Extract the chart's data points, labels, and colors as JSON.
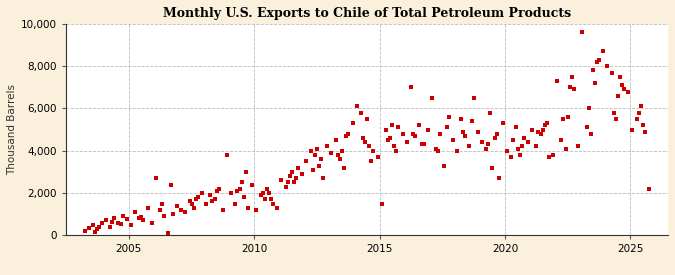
{
  "title": "Monthly U.S. Exports to Chile of Total Petroleum Products",
  "ylabel": "Thousand Barrels",
  "figure_bg_color": "#FAF0DC",
  "plot_bg_color": "#FFFFFF",
  "marker_color": "#CC0000",
  "xlim": [
    2002.5,
    2026.5
  ],
  "ylim": [
    0,
    10000
  ],
  "yticks": [
    0,
    2000,
    4000,
    6000,
    8000,
    10000
  ],
  "xticks": [
    2005,
    2010,
    2015,
    2020,
    2025
  ],
  "scatter_data": [
    [
      2003.25,
      200
    ],
    [
      2003.42,
      350
    ],
    [
      2003.58,
      500
    ],
    [
      2003.75,
      300
    ],
    [
      2003.92,
      600
    ],
    [
      2004.08,
      700
    ],
    [
      2004.25,
      400
    ],
    [
      2004.42,
      800
    ],
    [
      2004.58,
      600
    ],
    [
      2004.75,
      900
    ],
    [
      2004.92,
      750
    ],
    [
      2005.08,
      500
    ],
    [
      2005.25,
      1100
    ],
    [
      2005.42,
      800
    ],
    [
      2005.58,
      700
    ],
    [
      2005.75,
      1300
    ],
    [
      2005.92,
      600
    ],
    [
      2006.08,
      2700
    ],
    [
      2006.25,
      1200
    ],
    [
      2006.42,
      900
    ],
    [
      2006.58,
      100
    ],
    [
      2006.75,
      1000
    ],
    [
      2006.92,
      1400
    ],
    [
      2007.08,
      1200
    ],
    [
      2007.25,
      1100
    ],
    [
      2007.42,
      1600
    ],
    [
      2007.58,
      1300
    ],
    [
      2007.75,
      1800
    ],
    [
      2007.92,
      2000
    ],
    [
      2008.08,
      1500
    ],
    [
      2008.25,
      1900
    ],
    [
      2008.42,
      1700
    ],
    [
      2008.58,
      2200
    ],
    [
      2008.75,
      1200
    ],
    [
      2008.92,
      3800
    ],
    [
      2009.08,
      2000
    ],
    [
      2009.25,
      1500
    ],
    [
      2009.42,
      2200
    ],
    [
      2009.58,
      1800
    ],
    [
      2009.75,
      1300
    ],
    [
      2009.92,
      2400
    ],
    [
      2010.08,
      1200
    ],
    [
      2010.25,
      1900
    ],
    [
      2010.42,
      1700
    ],
    [
      2010.58,
      2000
    ],
    [
      2010.75,
      1500
    ],
    [
      2010.92,
      1300
    ],
    [
      2011.08,
      2600
    ],
    [
      2011.25,
      2300
    ],
    [
      2011.42,
      2800
    ],
    [
      2011.58,
      2500
    ],
    [
      2011.75,
      3200
    ],
    [
      2011.92,
      2900
    ],
    [
      2012.08,
      3500
    ],
    [
      2012.25,
      4000
    ],
    [
      2012.42,
      3800
    ],
    [
      2012.58,
      3300
    ],
    [
      2012.75,
      2700
    ],
    [
      2012.92,
      4200
    ],
    [
      2013.08,
      3900
    ],
    [
      2013.25,
      4500
    ],
    [
      2013.42,
      3600
    ],
    [
      2013.58,
      3200
    ],
    [
      2013.75,
      4800
    ],
    [
      2013.92,
      5300
    ],
    [
      2014.08,
      6100
    ],
    [
      2014.25,
      5800
    ],
    [
      2014.42,
      4400
    ],
    [
      2014.58,
      4200
    ],
    [
      2014.75,
      4000
    ],
    [
      2014.92,
      3700
    ],
    [
      2015.08,
      1500
    ],
    [
      2015.25,
      5000
    ],
    [
      2015.42,
      4600
    ],
    [
      2015.58,
      4200
    ],
    [
      2015.75,
      5100
    ],
    [
      2015.92,
      4800
    ],
    [
      2016.08,
      4400
    ],
    [
      2016.25,
      7000
    ],
    [
      2016.42,
      4700
    ],
    [
      2016.58,
      5200
    ],
    [
      2016.75,
      4300
    ],
    [
      2016.92,
      5000
    ],
    [
      2017.08,
      6500
    ],
    [
      2017.25,
      4100
    ],
    [
      2017.42,
      4800
    ],
    [
      2017.58,
      3300
    ],
    [
      2017.75,
      5600
    ],
    [
      2017.92,
      4500
    ],
    [
      2018.08,
      4000
    ],
    [
      2018.25,
      5500
    ],
    [
      2018.42,
      4700
    ],
    [
      2018.58,
      4200
    ],
    [
      2018.75,
      6500
    ],
    [
      2018.92,
      4900
    ],
    [
      2019.08,
      4400
    ],
    [
      2019.25,
      4100
    ],
    [
      2019.42,
      5800
    ],
    [
      2019.58,
      4600
    ],
    [
      2019.75,
      2700
    ],
    [
      2019.92,
      5300
    ],
    [
      2020.08,
      4000
    ],
    [
      2020.25,
      3700
    ],
    [
      2020.42,
      5100
    ],
    [
      2020.58,
      3800
    ],
    [
      2020.75,
      4600
    ],
    [
      2020.92,
      4400
    ],
    [
      2021.08,
      5000
    ],
    [
      2021.25,
      4200
    ],
    [
      2021.42,
      4800
    ],
    [
      2021.58,
      5200
    ],
    [
      2021.75,
      3700
    ],
    [
      2021.92,
      3800
    ],
    [
      2022.08,
      7300
    ],
    [
      2022.25,
      4500
    ],
    [
      2022.42,
      4100
    ],
    [
      2022.58,
      7000
    ],
    [
      2022.75,
      6900
    ],
    [
      2022.92,
      4200
    ],
    [
      2023.08,
      9600
    ],
    [
      2023.25,
      5100
    ],
    [
      2023.42,
      4800
    ],
    [
      2023.58,
      7200
    ],
    [
      2023.75,
      8300
    ],
    [
      2023.92,
      8700
    ],
    [
      2024.08,
      8000
    ],
    [
      2024.25,
      7700
    ],
    [
      2024.42,
      5500
    ],
    [
      2024.58,
      7500
    ],
    [
      2024.75,
      6900
    ],
    [
      2024.92,
      6800
    ],
    [
      2025.08,
      5000
    ],
    [
      2025.25,
      5500
    ],
    [
      2025.42,
      6100
    ],
    [
      2025.58,
      4900
    ],
    [
      2003.67,
      150
    ],
    [
      2004.33,
      650
    ],
    [
      2005.5,
      850
    ],
    [
      2006.33,
      1500
    ],
    [
      2007.67,
      1700
    ],
    [
      2008.5,
      2100
    ],
    [
      2009.33,
      2100
    ],
    [
      2010.33,
      2000
    ],
    [
      2011.33,
      2500
    ],
    [
      2012.33,
      3100
    ],
    [
      2013.33,
      3800
    ],
    [
      2014.33,
      4600
    ],
    [
      2015.33,
      4500
    ],
    [
      2016.33,
      4800
    ],
    [
      2017.33,
      4000
    ],
    [
      2018.33,
      4900
    ],
    [
      2019.33,
      4300
    ],
    [
      2020.33,
      4500
    ],
    [
      2021.33,
      4900
    ],
    [
      2022.33,
      5500
    ],
    [
      2023.33,
      6000
    ],
    [
      2024.33,
      5800
    ],
    [
      2025.33,
      5800
    ],
    [
      2025.5,
      5200
    ],
    [
      2016.67,
      4300
    ],
    [
      2017.67,
      5100
    ],
    [
      2018.67,
      5400
    ],
    [
      2019.67,
      4800
    ],
    [
      2020.67,
      4200
    ],
    [
      2021.67,
      5300
    ],
    [
      2022.67,
      7500
    ],
    [
      2023.67,
      8200
    ],
    [
      2024.67,
      7100
    ],
    [
      2003.83,
      400
    ],
    [
      2004.67,
      550
    ],
    [
      2006.67,
      2400
    ],
    [
      2009.67,
      3000
    ],
    [
      2010.67,
      1700
    ],
    [
      2011.67,
      2700
    ],
    [
      2012.67,
      3600
    ],
    [
      2013.67,
      4700
    ],
    [
      2014.67,
      3500
    ],
    [
      2015.67,
      4000
    ],
    [
      2019.5,
      3200
    ],
    [
      2020.5,
      4100
    ],
    [
      2021.5,
      5000
    ],
    [
      2022.5,
      5600
    ],
    [
      2023.5,
      7800
    ],
    [
      2024.5,
      6600
    ],
    [
      2007.5,
      1500
    ],
    [
      2008.33,
      1600
    ],
    [
      2009.5,
      2500
    ],
    [
      2010.5,
      2200
    ],
    [
      2011.5,
      3000
    ],
    [
      2012.5,
      4100
    ],
    [
      2013.5,
      4000
    ],
    [
      2014.5,
      5500
    ],
    [
      2015.5,
      5200
    ],
    [
      2025.75,
      2200
    ]
  ]
}
